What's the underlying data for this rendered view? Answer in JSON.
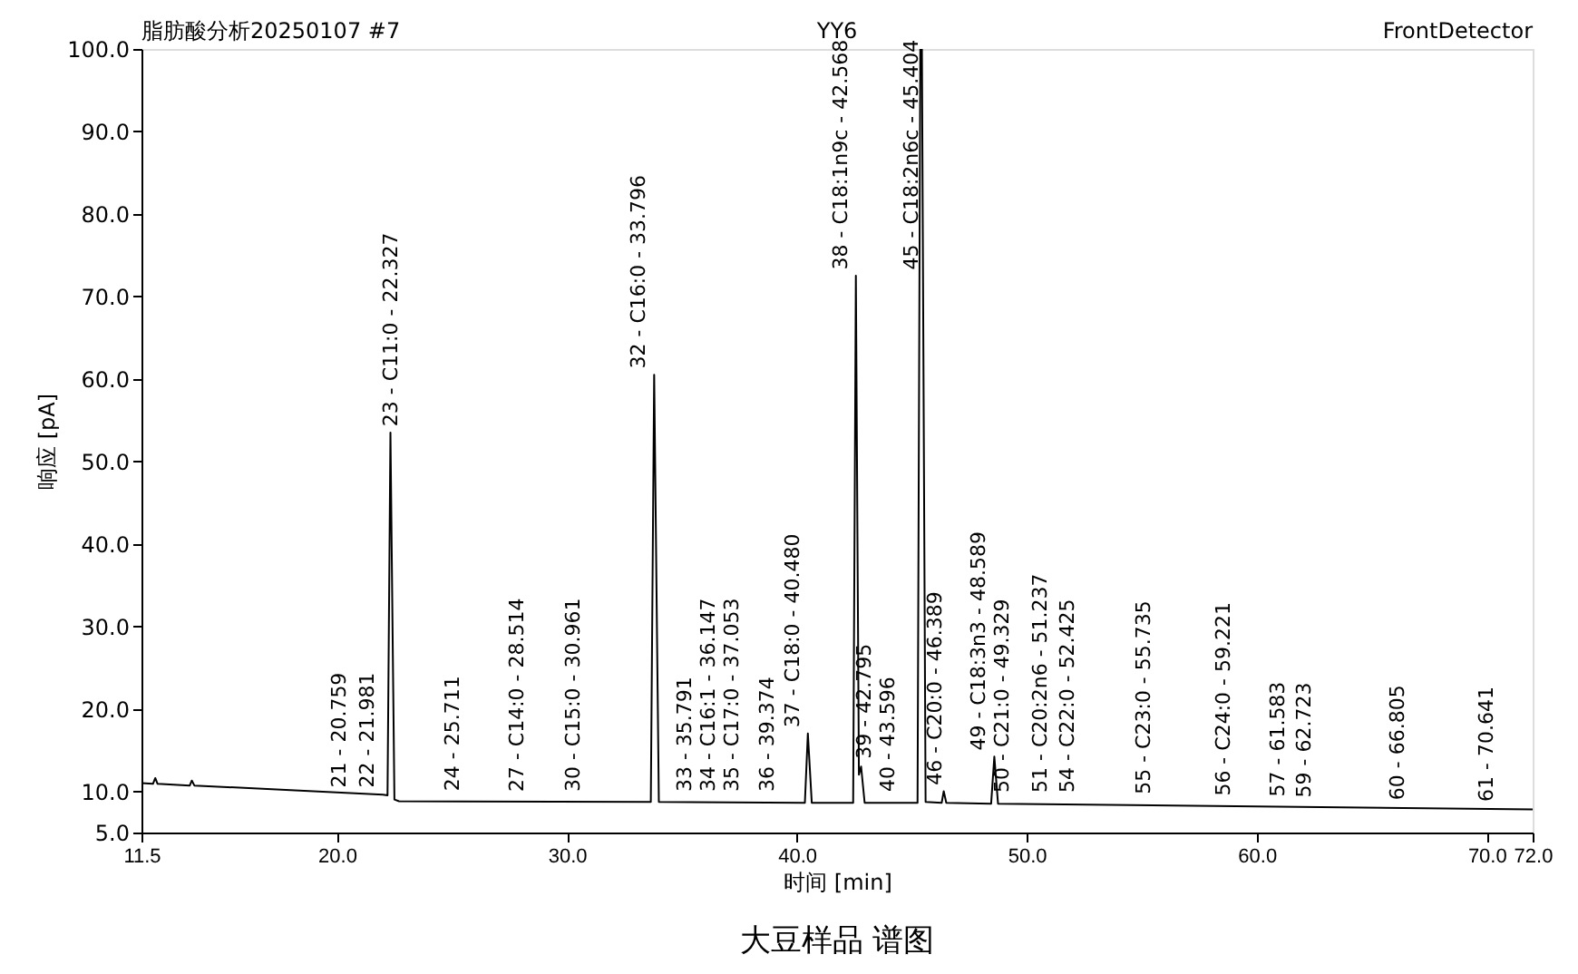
{
  "chart_data": {
    "type": "line",
    "title": "YY6",
    "xlabel": "时间 [min]",
    "ylabel": "响应 [pA]",
    "x": [
      11.5,
      12.0,
      12.1,
      12.2,
      13.6,
      13.69,
      13.8,
      22.0,
      22.2,
      22.327,
      22.5,
      22.7,
      33.65,
      33.796,
      34.0,
      40.35,
      40.48,
      40.65,
      42.45,
      42.568,
      42.7,
      42.795,
      42.95,
      45.25,
      45.37,
      45.44,
      45.6,
      46.3,
      46.389,
      46.5,
      48.45,
      48.589,
      48.75,
      72.0
    ],
    "series": [
      {
        "color": "#000000",
        "values": [
          11.0,
          10.9,
          11.6,
          10.9,
          10.7,
          11.3,
          10.7,
          9.6,
          9.5,
          53.5,
          9.0,
          8.8,
          8.7,
          60.5,
          8.7,
          8.6,
          17.0,
          8.6,
          8.6,
          72.5,
          12.0,
          13.0,
          8.6,
          8.6,
          100.0,
          100.0,
          8.7,
          8.6,
          10.0,
          8.6,
          8.5,
          14.2,
          8.5,
          7.8
        ]
      }
    ],
    "xlim": [
      11.5,
      72.0
    ],
    "xticks": [
      {
        "value": 11.5,
        "label": "11.5"
      },
      {
        "value": 20,
        "label": "20.0"
      },
      {
        "value": 30,
        "label": "30.0"
      },
      {
        "value": 40,
        "label": "40.0"
      },
      {
        "value": 50,
        "label": "50.0"
      },
      {
        "value": 60,
        "label": "60.0"
      },
      {
        "value": 70,
        "label": "70.0"
      },
      {
        "value": 72,
        "label": "72.0"
      }
    ],
    "ylim": [
      5,
      100
    ],
    "yticks": [
      {
        "value": 5,
        "label": "5.0"
      },
      {
        "value": 10,
        "label": "10.0"
      },
      {
        "value": 20,
        "label": "20.0"
      },
      {
        "value": 30,
        "label": "30.0"
      },
      {
        "value": 40,
        "label": "40.0"
      },
      {
        "value": 50,
        "label": "50.0"
      },
      {
        "value": 60,
        "label": "60.0"
      },
      {
        "value": 70,
        "label": "70.0"
      },
      {
        "value": 80,
        "label": "80.0"
      },
      {
        "value": 90,
        "label": "90.0"
      },
      {
        "value": 100,
        "label": "100.0"
      }
    ],
    "grid": false,
    "line_style": "solid",
    "marker": "none",
    "annotations": [
      "脂肪酸分析20250107 #7",
      "FrontDetector",
      "大豆样品  谱图",
      {
        "text": "21 - 20.759",
        "x": 20.759,
        "y": 10.0
      },
      {
        "text": "22 - 21.981",
        "x": 21.981,
        "y": 10.0
      },
      {
        "text": "23 - C11:0 - 22.327",
        "x": 22.327,
        "y": 53.8
      },
      {
        "text": "24 - 25.711",
        "x": 25.711,
        "y": 9.6
      },
      {
        "text": "27 - C14:0 - 28.514",
        "x": 28.514,
        "y": 9.5
      },
      {
        "text": "30 - C15:0 - 30.961",
        "x": 30.961,
        "y": 9.5
      },
      {
        "text": "32 - C16:0 - 33.796",
        "x": 33.796,
        "y": 60.8
      },
      {
        "text": "33 - 35.791",
        "x": 35.791,
        "y": 9.5
      },
      {
        "text": "34 - C16:1 - 36.147",
        "x": 36.147,
        "y": 9.5
      },
      {
        "text": "35 - C17:0 - 37.053",
        "x": 37.053,
        "y": 9.5
      },
      {
        "text": "36 - 39.374",
        "x": 39.374,
        "y": 9.5
      },
      {
        "text": "37 - C18:0 - 40.480",
        "x": 40.48,
        "y": 17.3
      },
      {
        "text": "38 - C18:1n9c - 42.568",
        "x": 42.568,
        "y": 72.8
      },
      {
        "text": "39 - 42.795",
        "x": 42.795,
        "y": 13.5
      },
      {
        "text": "40 - 43.596",
        "x": 43.596,
        "y": 9.5
      },
      {
        "text": "45 - C18:2n6c - 45.404",
        "x": 45.404,
        "y": 72.8
      },
      {
        "text": "46 - C20:0 - 46.389",
        "x": 46.389,
        "y": 10.3
      },
      {
        "text": "49 - C18:3n3 - 48.589",
        "x": 48.589,
        "y": 14.5
      },
      {
        "text": "50 - C21:0 - 49.329",
        "x": 49.329,
        "y": 9.4
      },
      {
        "text": "51 - C20:2n6 - 51.237",
        "x": 51.237,
        "y": 9.4
      },
      {
        "text": "54 - C22:0 - 52.425",
        "x": 52.425,
        "y": 9.4
      },
      {
        "text": "55 - C23:0 - 55.735",
        "x": 55.735,
        "y": 9.2
      },
      {
        "text": "56 - C24:0 - 59.221",
        "x": 59.221,
        "y": 9.0
      },
      {
        "text": "57 - 61.583",
        "x": 61.583,
        "y": 8.9
      },
      {
        "text": "59 - 62.723",
        "x": 62.723,
        "y": 8.8
      },
      {
        "text": "60 - 66.805",
        "x": 66.805,
        "y": 8.5
      },
      {
        "text": "61 - 70.641",
        "x": 70.641,
        "y": 8.3
      }
    ]
  }
}
